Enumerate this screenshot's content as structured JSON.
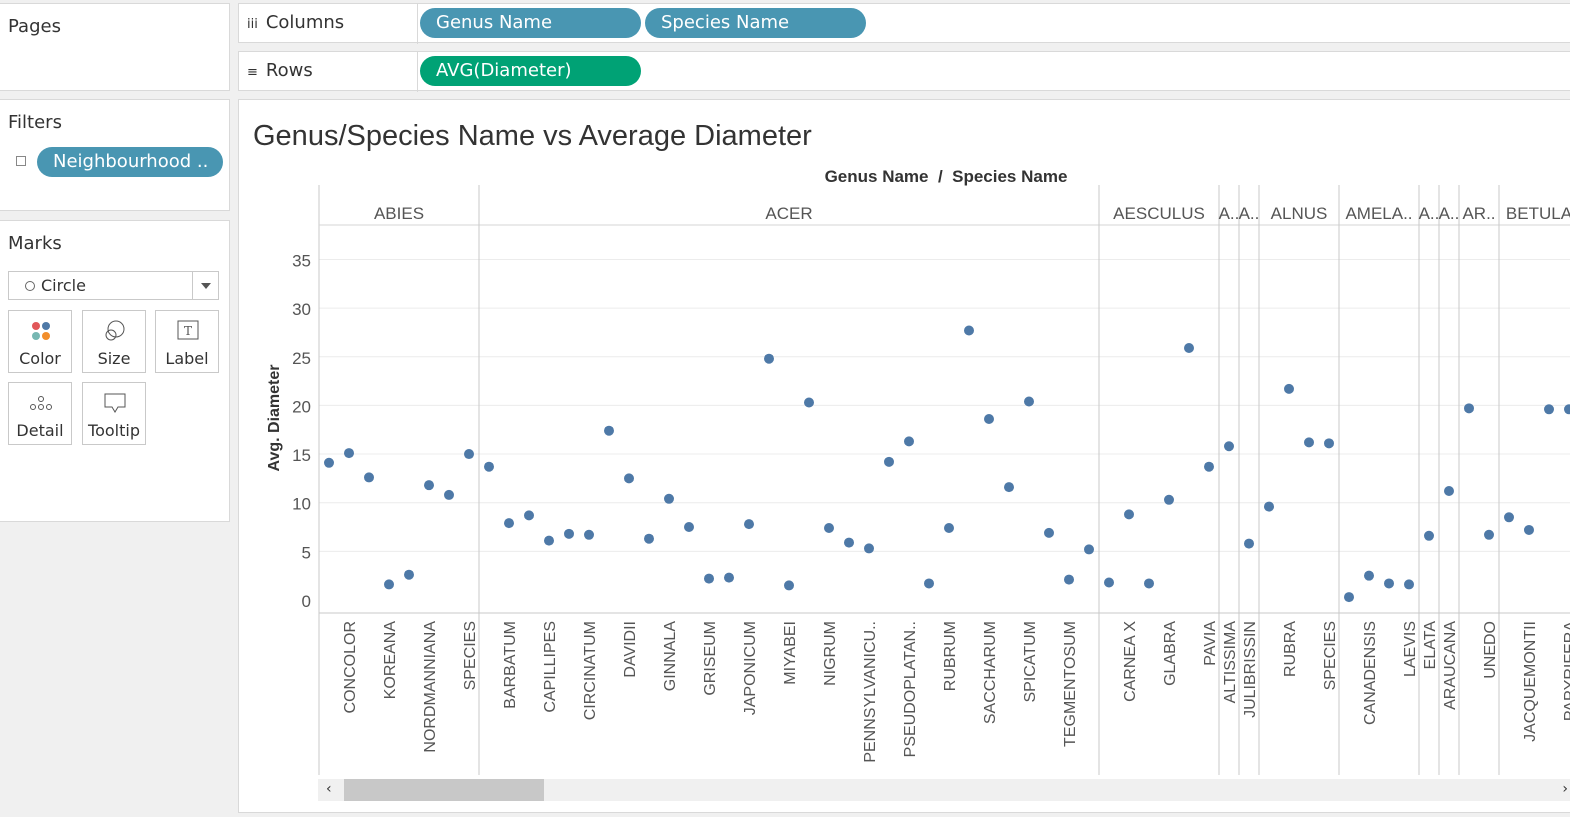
{
  "pages": {
    "title": "Pages"
  },
  "filters": {
    "title": "Filters",
    "pill": "Neighbourhood .."
  },
  "marks": {
    "title": "Marks",
    "type": "Circle",
    "buttons": [
      "Color",
      "Size",
      "Label",
      "Detail",
      "Tooltip"
    ]
  },
  "shelves": {
    "columns_label": "Columns",
    "rows_label": "Rows",
    "columns_pills": [
      "Genus Name",
      "Species Name"
    ],
    "rows_pills": [
      "AVG(Diameter)"
    ]
  },
  "colors": {
    "dimension": "#4996b2",
    "measure": "#00a275",
    "mark": "#4e79a7"
  },
  "chart_data": {
    "type": "scatter",
    "title": "Genus/Species Name vs Average Diameter",
    "header": "Genus Name  /  Species Name",
    "ylabel": "Avg. Diameter",
    "yticks": [
      0,
      5,
      10,
      15,
      20,
      25,
      30,
      35
    ],
    "ylim": [
      0,
      40
    ],
    "genera": [
      {
        "name": "ABIES",
        "species": [
          {
            "label": "",
            "value": 14.1
          },
          {
            "label": "CONCOLOR",
            "value": 15.1
          },
          {
            "label": "",
            "value": 12.6
          },
          {
            "label": "KOREANA",
            "value": 1.6
          },
          {
            "label": "",
            "value": 2.6
          },
          {
            "label": "NORDMANNIANA",
            "value": 11.8
          },
          {
            "label": "",
            "value": 10.8
          },
          {
            "label": "SPECIES",
            "value": 15.0
          }
        ]
      },
      {
        "name": "ACER",
        "species": [
          {
            "label": "",
            "value": 13.7
          },
          {
            "label": "BARBATUM",
            "value": 7.9
          },
          {
            "label": "",
            "value": 8.7
          },
          {
            "label": "CAPILLIPES",
            "value": 6.1
          },
          {
            "label": "",
            "value": 6.8
          },
          {
            "label": "CIRCINATUM",
            "value": 6.7
          },
          {
            "label": "",
            "value": 17.4
          },
          {
            "label": "DAVIDII",
            "value": 12.5
          },
          {
            "label": "",
            "value": 6.3
          },
          {
            "label": "GINNALA",
            "value": 10.4
          },
          {
            "label": "",
            "value": 7.5
          },
          {
            "label": "GRISEUM",
            "value": 2.2
          },
          {
            "label": "",
            "value": 2.3
          },
          {
            "label": "JAPONICUM",
            "value": 7.8
          },
          {
            "label": "",
            "value": 24.8
          },
          {
            "label": "MIYABEI",
            "value": 1.5
          },
          {
            "label": "",
            "value": 20.3
          },
          {
            "label": "NIGRUM",
            "value": 7.4
          },
          {
            "label": "",
            "value": 5.9
          },
          {
            "label": "PENNSYLVANICU..",
            "value": 5.3
          },
          {
            "label": "",
            "value": 14.2
          },
          {
            "label": "PSEUDOPLATAN..",
            "value": 16.3
          },
          {
            "label": "",
            "value": 1.7
          },
          {
            "label": "RUBRUM",
            "value": 7.4
          },
          {
            "label": "",
            "value": 27.7
          },
          {
            "label": "SACCHARUM",
            "value": 18.6
          },
          {
            "label": "",
            "value": 11.6
          },
          {
            "label": "SPICATUM",
            "value": 20.4
          },
          {
            "label": "",
            "value": 6.9
          },
          {
            "label": "TEGMENTOSUM",
            "value": 2.1
          },
          {
            "label": "",
            "value": 5.2
          }
        ]
      },
      {
        "name": "AESCULUS",
        "species": [
          {
            "label": "",
            "value": 1.8
          },
          {
            "label": "CARNEA  X",
            "value": 8.8
          },
          {
            "label": "",
            "value": 1.7
          },
          {
            "label": "GLABRA",
            "value": 10.3
          },
          {
            "label": "",
            "value": 25.9
          },
          {
            "label": "PAVIA",
            "value": 13.7
          }
        ]
      },
      {
        "name": "A..",
        "species": [
          {
            "label": "ALTISSIMA",
            "value": 15.8
          }
        ]
      },
      {
        "name": "A..",
        "species": [
          {
            "label": "JULIBRISSIN",
            "value": 5.8
          }
        ]
      },
      {
        "name": "ALNUS",
        "species": [
          {
            "label": "",
            "value": 9.6
          },
          {
            "label": "RUBRA",
            "value": 21.7
          },
          {
            "label": "",
            "value": 16.2
          },
          {
            "label": "SPECIES",
            "value": 16.1
          }
        ]
      },
      {
        "name": "AMELA..",
        "species": [
          {
            "label": "",
            "value": 0.3
          },
          {
            "label": "CANADENSIS",
            "value": 2.5
          },
          {
            "label": "",
            "value": 1.7
          },
          {
            "label": "LAEVIS",
            "value": 1.6
          }
        ]
      },
      {
        "name": "A..",
        "species": [
          {
            "label": "ELATA",
            "value": 6.6
          }
        ]
      },
      {
        "name": "A..",
        "species": [
          {
            "label": "ARAUCANA",
            "value": 11.2
          }
        ]
      },
      {
        "name": "AR..",
        "species": [
          {
            "label": "",
            "value": 19.7
          },
          {
            "label": "UNEDO",
            "value": 6.7
          }
        ]
      },
      {
        "name": "BETULA",
        "species": [
          {
            "label": "",
            "value": 8.5
          },
          {
            "label": "JACQUEMONTII",
            "value": 7.2
          },
          {
            "label": "",
            "value": 19.6
          },
          {
            "label": "PAPYRIFERA",
            "value": 19.6
          }
        ]
      }
    ]
  }
}
